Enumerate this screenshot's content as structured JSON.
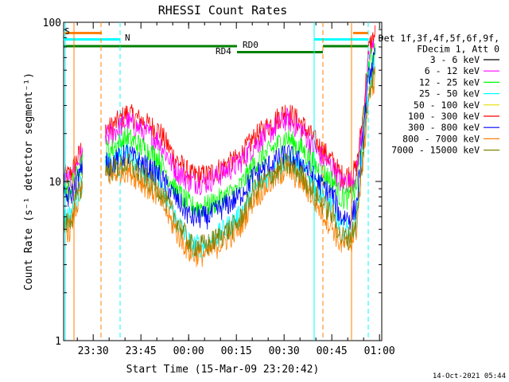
{
  "chart_data": {
    "type": "line",
    "title": "RHESSI Count Rates",
    "xlabel": "Start Time (15-Mar-09 23:20:42)",
    "ylabel": "Count Rate (s⁻¹ detector segment⁻¹)",
    "yscale": "log",
    "ylim": [
      1,
      100
    ],
    "xlim_minutes_from_start": [
      0,
      100
    ],
    "y_tick_labels": [
      "1",
      "10",
      "100"
    ],
    "x_tick_labels": [
      "23:30",
      "23:45",
      "00:00",
      "00:15",
      "00:30",
      "00:45",
      "01:00"
    ],
    "legend_title": [
      "Det 1f,3f,4f,5f,6f,9f,",
      "FDecim 1, Att 0"
    ],
    "legend": [
      {
        "label": "3 - 6 keV",
        "color": "#000000"
      },
      {
        "label": "6 - 12 keV",
        "color": "#ff00ff"
      },
      {
        "label": "12 - 25 keV",
        "color": "#00ff00"
      },
      {
        "label": "25 - 50 keV",
        "color": "#00ffff"
      },
      {
        "label": "50 - 100 keV",
        "color": "#e0e000"
      },
      {
        "label": "100 - 300 keV",
        "color": "#ff0000"
      },
      {
        "label": "300 - 800 keV",
        "color": "#0000ff"
      },
      {
        "label": "800 - 7000 keV",
        "color": "#ff8000"
      },
      {
        "label": "7000 - 15000 keV",
        "color": "#808000"
      }
    ],
    "state_bars": {
      "S_label": "S",
      "N_label": "N",
      "RD0_label": "RD0",
      "RD4_label": "RD4"
    },
    "series": [
      {
        "name": "100 - 300 keV",
        "color": "#ff0000",
        "x": [
          0,
          2,
          5,
          7,
          15,
          20,
          30,
          35,
          40,
          45,
          55,
          60,
          70,
          75,
          80,
          85,
          87,
          90,
          92,
          94,
          96,
          98
        ],
        "y": [
          11,
          11,
          15,
          19,
          22,
          27,
          21,
          14,
          11,
          11,
          14,
          19,
          28,
          23,
          17,
          13,
          11,
          11,
          12,
          25,
          70,
          85
        ]
      },
      {
        "name": "6 - 12 keV",
        "color": "#ff00ff",
        "x": [
          0,
          2,
          5,
          7,
          15,
          20,
          30,
          35,
          40,
          45,
          55,
          60,
          70,
          75,
          80,
          85,
          87,
          90,
          92,
          94,
          96,
          98
        ],
        "y": [
          10,
          10,
          14,
          17,
          20,
          24,
          18,
          12,
          10,
          10,
          13,
          17,
          25,
          21,
          15,
          12,
          10,
          10,
          11,
          22,
          60,
          75
        ]
      },
      {
        "name": "12 - 25 keV",
        "color": "#00ff00",
        "x": [
          0,
          2,
          5,
          7,
          15,
          20,
          30,
          35,
          40,
          45,
          55,
          60,
          70,
          75,
          80,
          85,
          87,
          90,
          92,
          94,
          96,
          98
        ],
        "y": [
          9,
          9,
          12,
          15,
          16,
          19,
          14,
          9,
          7,
          7,
          9,
          13,
          19,
          16,
          12,
          10,
          8,
          8,
          9,
          20,
          55,
          70
        ]
      },
      {
        "name": "25 - 50 keV",
        "color": "#00ffff",
        "x": [
          0,
          2,
          5,
          7,
          15,
          20,
          30,
          35,
          40,
          45,
          55,
          60,
          70,
          75,
          80,
          85,
          87,
          90,
          92,
          94,
          96,
          98
        ],
        "y": [
          6,
          6,
          9,
          12,
          13,
          15,
          10,
          6,
          4,
          4,
          6,
          9,
          14,
          12,
          9,
          7,
          5,
          5,
          6,
          15,
          40,
          55
        ]
      },
      {
        "name": "300 - 800 keV",
        "color": "#0000ff",
        "x": [
          0,
          2,
          5,
          7,
          15,
          20,
          30,
          35,
          40,
          45,
          55,
          60,
          70,
          75,
          80,
          85,
          87,
          90,
          92,
          94,
          96,
          98
        ],
        "y": [
          8,
          8,
          11,
          13,
          13,
          15,
          11,
          8,
          6,
          6,
          8,
          11,
          15,
          13,
          10,
          8,
          6,
          6,
          7,
          18,
          48,
          60
        ]
      },
      {
        "name": "800 - 7000 keV",
        "color": "#ff8000",
        "x": [
          0,
          2,
          5,
          7,
          15,
          20,
          30,
          35,
          40,
          45,
          55,
          60,
          70,
          75,
          80,
          85,
          87,
          90,
          92,
          94,
          96,
          98
        ],
        "y": [
          5,
          5,
          8,
          10,
          11,
          12,
          8,
          5,
          3.5,
          3.5,
          5,
          8,
          12,
          10,
          7,
          5,
          4,
          4,
          5,
          13,
          35,
          45
        ]
      },
      {
        "name": "7000 - 15000 keV",
        "color": "#808000",
        "x": [
          0,
          2,
          5,
          7,
          15,
          20,
          30,
          35,
          40,
          45,
          55,
          60,
          70,
          75,
          80,
          85,
          87,
          90,
          92,
          94,
          96,
          98
        ],
        "y": [
          5.5,
          5.5,
          9,
          11,
          12,
          13,
          9,
          6,
          4,
          4,
          5.5,
          9,
          13,
          11,
          8,
          6,
          4.5,
          4.5,
          5.5,
          14,
          38,
          50
        ]
      }
    ]
  },
  "footer_date": "14-Oct-2021 05:44"
}
